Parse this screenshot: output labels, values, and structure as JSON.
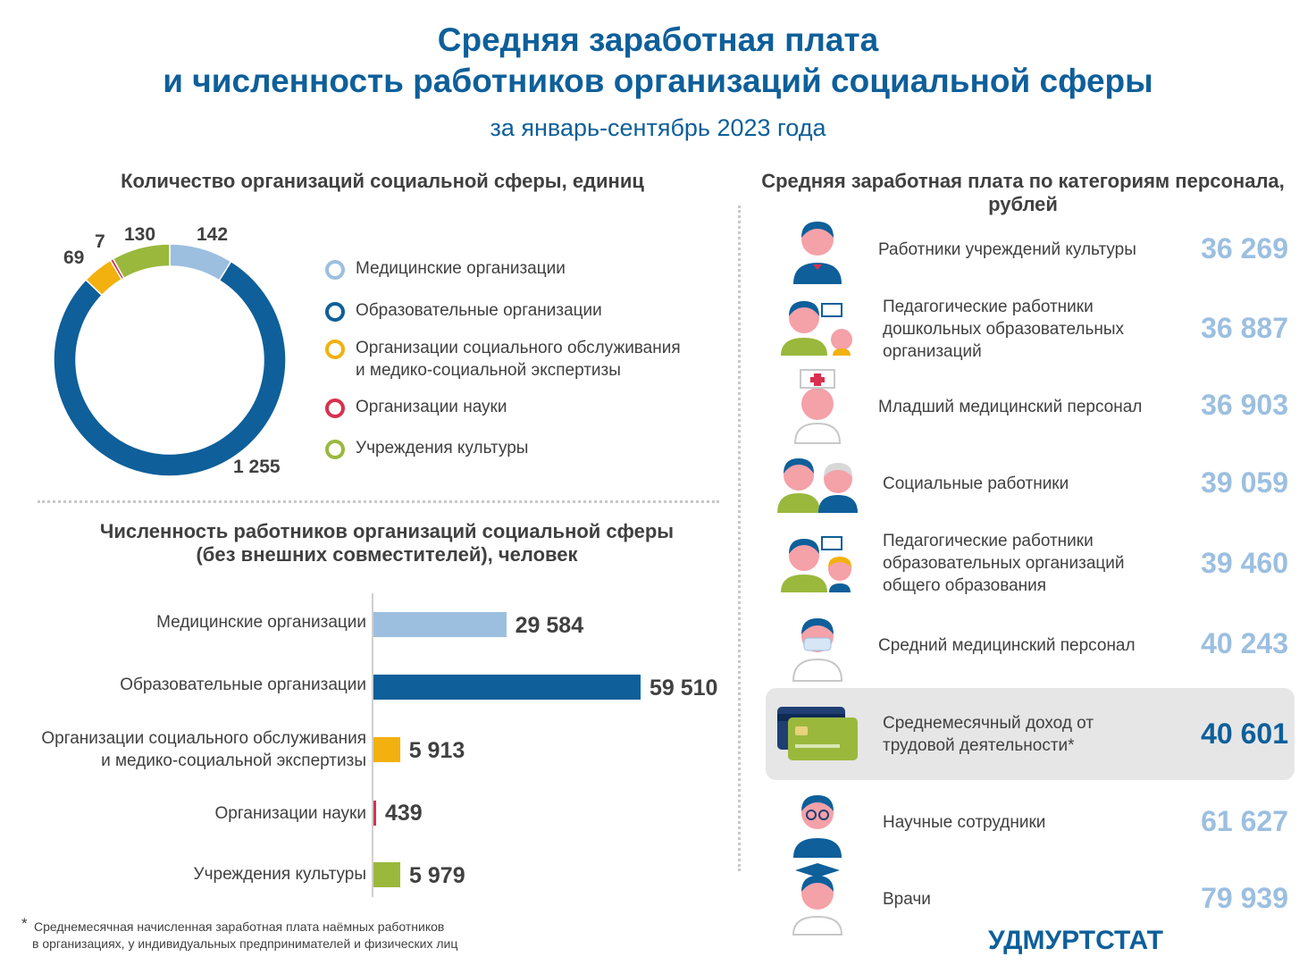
{
  "title": {
    "line1": "Средняя заработная плата",
    "line2": "и численность работников организаций социальной сферы",
    "subtitle": "за январь-сентябрь 2023 года"
  },
  "colors": {
    "medical": "#9cbfe0",
    "education": "#0e5f9a",
    "social": "#f2b10f",
    "science": "#d9304f",
    "culture": "#9ab83c",
    "accent": "#0e5f9a"
  },
  "chart_data": [
    {
      "type": "pie",
      "title": "Количество организаций социальной сферы, единиц",
      "categories": [
        "Медицинские организации",
        "Образовательные организации",
        "Организации социального обслуживания и медико-социальной экспертизы",
        "Организации науки",
        "Учреждения культуры"
      ],
      "legend": [
        "Медицинские организации",
        "Образовательные организации",
        "Организации социального обслуживания",
        "и медико-социальной экспертизы",
        "Организации науки",
        "Учреждения культуры"
      ],
      "values": [
        142,
        1255,
        69,
        7,
        130
      ],
      "value_labels": [
        "142",
        "1 255",
        "69",
        "7",
        "130"
      ],
      "legend_placement": "right"
    },
    {
      "type": "bar",
      "title": "Численность работников организаций социальной сферы (без внешних совместителей), человек",
      "title_line1": "Численность работников организаций социальной сферы",
      "title_line2": "(без внешних совместителей), человек",
      "categories": [
        "Медицинские организации",
        "Образовательные организации",
        "Организации социального обслуживания и медико-социальной экспертизы",
        "Организации науки",
        "Учреждения культуры"
      ],
      "category_lines": [
        [
          "Медицинские организации"
        ],
        [
          "Образовательные организации"
        ],
        [
          "Организации социального обслуживания",
          "и медико-социальной экспертизы"
        ],
        [
          "Организации науки"
        ],
        [
          "Учреждения культуры"
        ]
      ],
      "values": [
        29584,
        59510,
        5913,
        439,
        5979
      ],
      "value_labels": [
        "29 584",
        "59 510",
        "5 913",
        "439",
        "5 979"
      ],
      "orientation": "horizontal"
    },
    {
      "type": "table",
      "title": "Средняя заработная плата по категориям персонала, рублей",
      "title_line1": "Средняя заработная плата по категориям персонала,",
      "title_line2": "рублей",
      "rows": [
        {
          "label_lines": [
            "Работники учреждений культуры"
          ],
          "value": 36269,
          "value_label": "36 269",
          "icon": "culture-worker-icon"
        },
        {
          "label_lines": [
            "Педагогические работники",
            "дошкольных образовательных",
            "организаций"
          ],
          "value": 36887,
          "value_label": "36 887",
          "icon": "preschool-teacher-icon"
        },
        {
          "label_lines": [
            "Младший медицинский персонал"
          ],
          "value": 36903,
          "value_label": "36 903",
          "icon": "nurse-icon"
        },
        {
          "label_lines": [
            "Социальные работники"
          ],
          "value": 39059,
          "value_label": "39 059",
          "icon": "social-worker-icon"
        },
        {
          "label_lines": [
            "Педагогические работники",
            "образовательных организаций",
            "общего образования"
          ],
          "value": 39460,
          "value_label": "39 460",
          "icon": "school-teacher-icon"
        },
        {
          "label_lines": [
            "Средний медицинский персонал"
          ],
          "value": 40243,
          "value_label": "40 243",
          "icon": "medical-staff-icon"
        },
        {
          "label_lines": [
            "Среднемесячный доход от",
            "трудовой деятельности*"
          ],
          "value": 40601,
          "value_label": "40 601",
          "icon": "bank-cards-icon",
          "highlight": true
        },
        {
          "label_lines": [
            "Научные сотрудники"
          ],
          "value": 61627,
          "value_label": "61 627",
          "icon": "scientist-icon"
        },
        {
          "label_lines": [
            "Врачи"
          ],
          "value": 79939,
          "value_label": "79 939",
          "icon": "doctor-icon"
        }
      ]
    }
  ],
  "footnote": {
    "mark": "*",
    "line1": "Среднемесячная начисленная заработная плата наёмных работников",
    "line2": "в организациях, у индивидуальных предпринимателей и физических лиц"
  },
  "brand": "УДМУРТСТАТ"
}
